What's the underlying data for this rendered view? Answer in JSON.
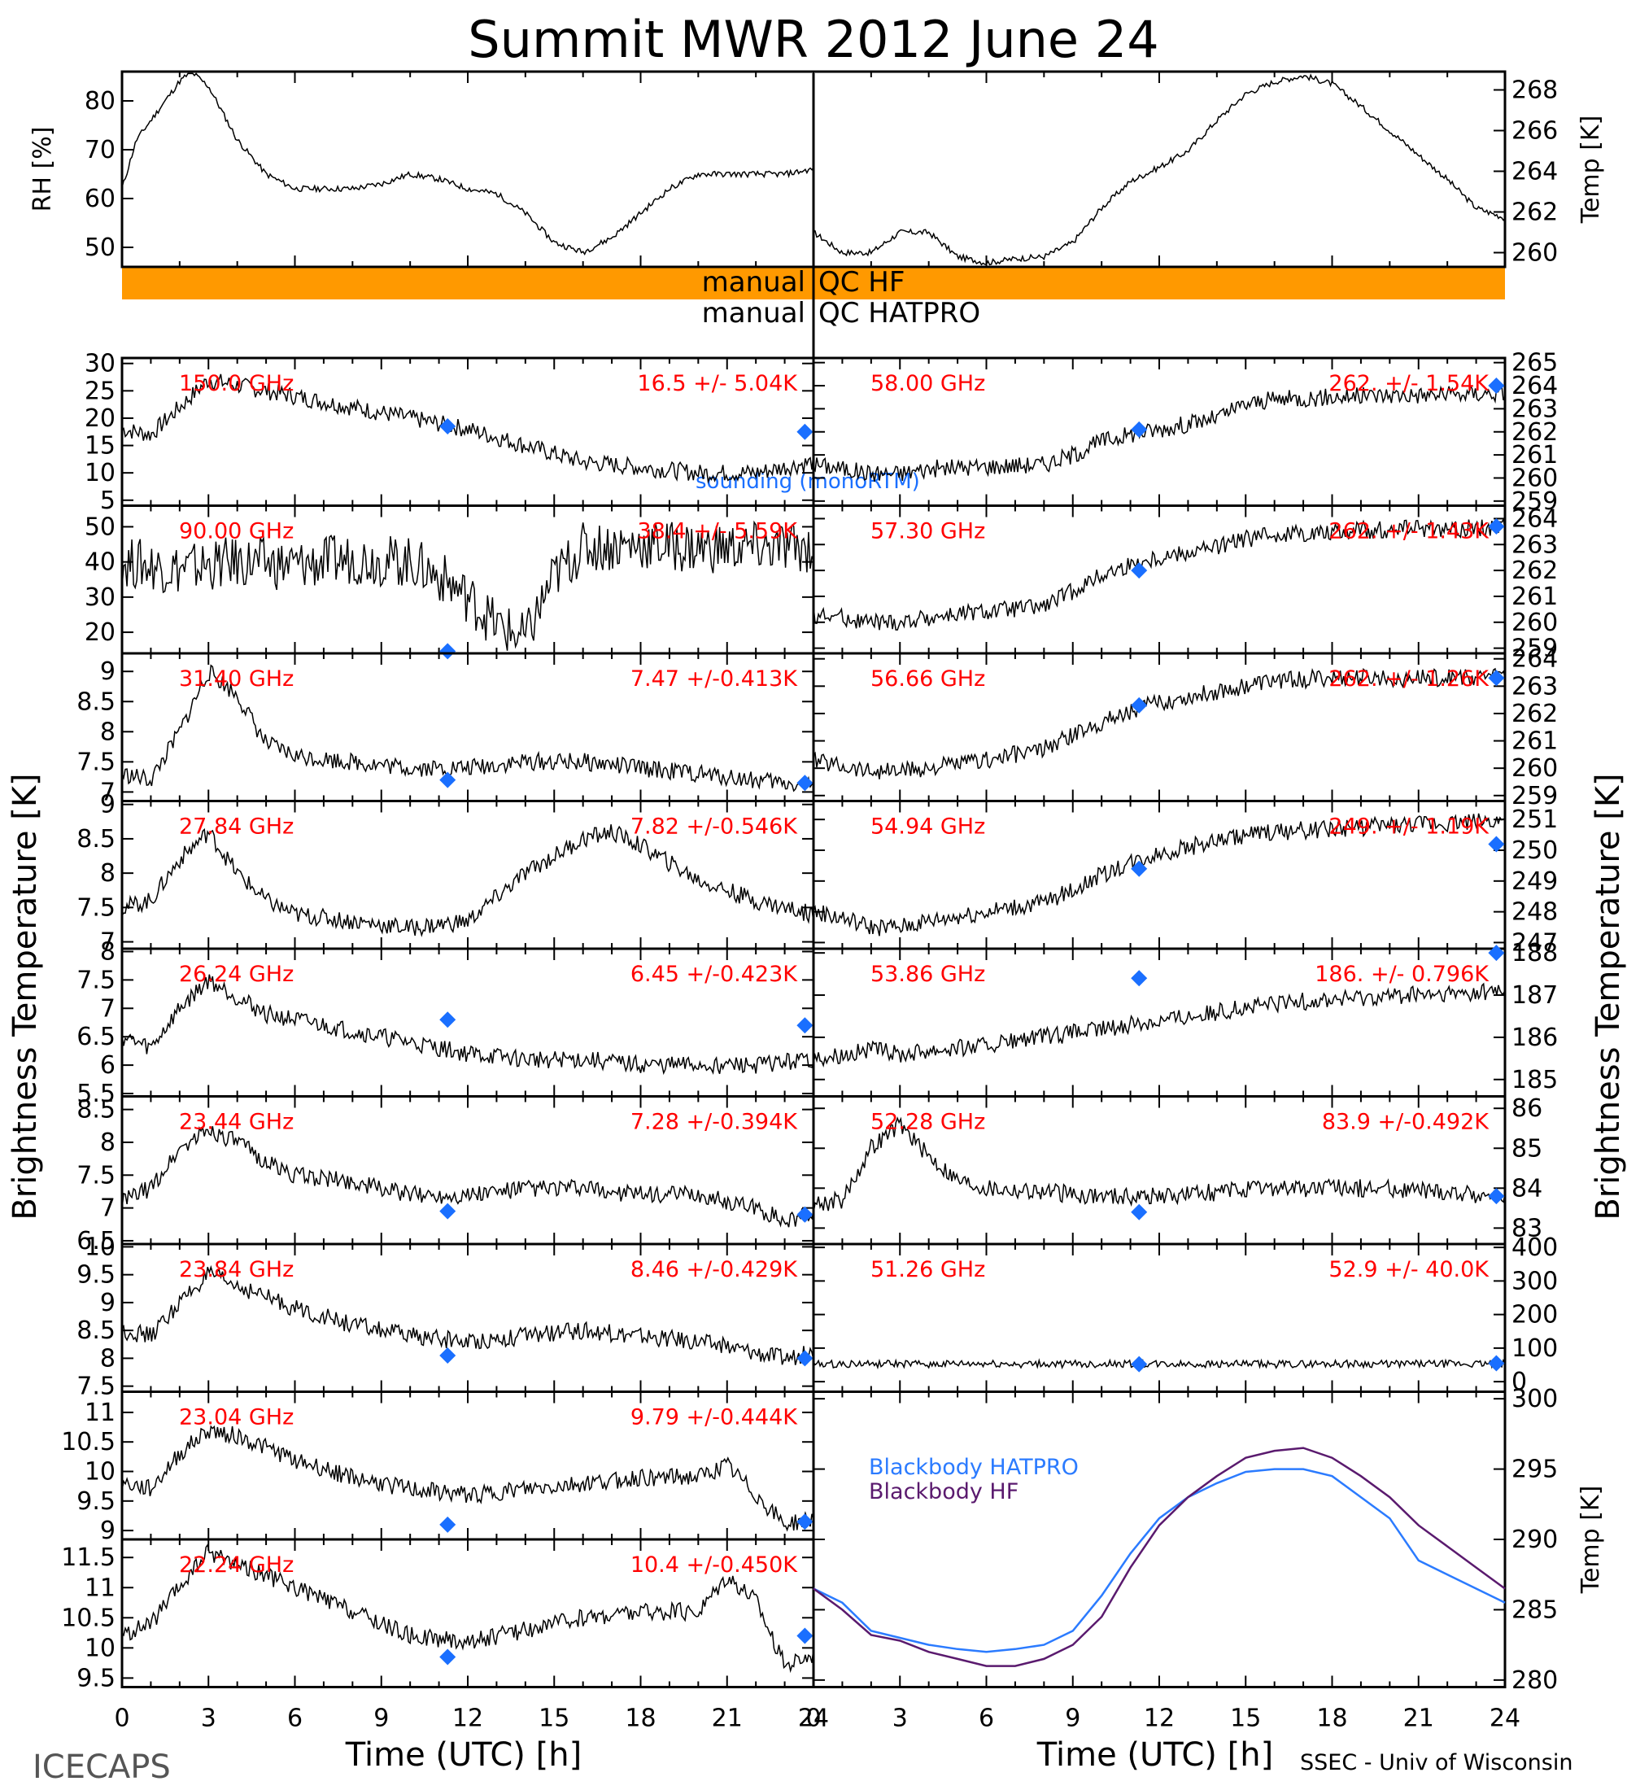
{
  "title": "Summit MWR 2012 June 24",
  "footer_left": "ICECAPS",
  "footer_right": "SSEC - Univ of Wisconsin",
  "colors": {
    "trace": "#000000",
    "sounding": "#1a6fff",
    "qc_bar": "#ff9900",
    "stats": "#ff0000",
    "bb_hatpro": "#2b7bff",
    "bb_hf": "#5a1a6e"
  },
  "chart_data": [
    {
      "type": "line",
      "id": "met",
      "left_ylabel": "RH [%]",
      "right_ylabel": "Temp [K]",
      "left_yticks": [
        50,
        60,
        70,
        80
      ],
      "left_ylim": [
        46,
        86
      ],
      "right_yticks": [
        260,
        262,
        264,
        266,
        268
      ],
      "right_ylim": [
        259.3,
        268.9
      ],
      "rh": {
        "x": [
          0,
          0.5,
          1,
          1.5,
          2,
          2.4,
          3,
          4,
          5,
          6,
          7,
          8,
          9,
          10,
          11,
          12,
          13,
          14,
          15,
          16,
          17,
          18,
          19,
          20,
          21,
          22,
          23,
          24
        ],
        "y": [
          62,
          72,
          76,
          80,
          84,
          86,
          83,
          72,
          65,
          62,
          62,
          62,
          63,
          65,
          64,
          62,
          61,
          57,
          51,
          49,
          52,
          57,
          62,
          65,
          65,
          65,
          65,
          66
        ]
      },
      "temp": {
        "x": [
          0,
          1,
          2,
          3,
          4,
          5,
          6,
          7,
          8,
          9,
          10,
          11,
          12,
          13,
          14,
          15,
          16,
          17,
          18,
          19,
          20,
          21,
          22,
          23,
          24
        ],
        "y": [
          261,
          260,
          260,
          261,
          261,
          259.8,
          259.5,
          259.7,
          259.8,
          260.5,
          262.2,
          263.5,
          264.2,
          265,
          266.5,
          267.8,
          268.4,
          268.7,
          268.3,
          267.2,
          266,
          264.8,
          263.6,
          262.2,
          261.7
        ]
      }
    },
    {
      "type": "line",
      "id": "p150",
      "freq": "150.0 GHz",
      "stats": "16.5 +/- 5.04K",
      "yticks": [
        5,
        10,
        15,
        20,
        25,
        30
      ],
      "ylim": [
        4,
        31
      ],
      "x": [
        0,
        1,
        2,
        3,
        4,
        6,
        8,
        10,
        12,
        14,
        16,
        18,
        20,
        22,
        24
      ],
      "y": [
        18,
        17,
        22,
        27,
        26,
        24,
        22,
        20,
        18,
        15,
        12,
        11,
        10,
        10,
        12
      ],
      "sounding": [
        [
          11.3,
          18.5
        ],
        [
          23.7,
          17.5
        ]
      ],
      "note": "sounding (monoRTM)"
    },
    {
      "type": "line",
      "id": "p90",
      "freq": "90.00 GHz",
      "stats": "38.4 +/- 5.59K",
      "yticks": [
        20,
        30,
        40,
        50
      ],
      "ylim": [
        14,
        56
      ],
      "x": [
        0,
        2,
        4,
        6,
        8,
        10,
        11,
        12,
        13,
        14,
        15,
        16,
        18,
        20,
        22,
        24
      ],
      "y": [
        40,
        38,
        40,
        39,
        41,
        40,
        36,
        30,
        22,
        18,
        36,
        44,
        45,
        44,
        44,
        44
      ],
      "sounding": [
        [
          11.3,
          14.6
        ]
      ]
    },
    {
      "type": "line",
      "id": "p3140",
      "freq": "31.40 GHz",
      "stats": "7.47 +/-0.413K",
      "yticks": [
        7.0,
        7.5,
        8.0,
        8.5,
        9.0
      ],
      "ylim": [
        6.85,
        9.3
      ],
      "x": [
        0,
        1,
        2,
        3,
        4,
        5,
        6,
        8,
        10,
        12,
        14,
        16,
        18,
        20,
        22,
        24
      ],
      "y": [
        7.3,
        7.2,
        8.0,
        9.0,
        8.6,
        7.8,
        7.6,
        7.5,
        7.4,
        7.4,
        7.5,
        7.5,
        7.4,
        7.3,
        7.2,
        7.1
      ],
      "sounding": [
        [
          11.3,
          7.2
        ],
        [
          23.7,
          7.15
        ]
      ]
    },
    {
      "type": "line",
      "id": "p2784",
      "freq": "27.84 GHz",
      "stats": "7.82 +/-0.546K",
      "yticks": [
        7.0,
        7.5,
        8.0,
        8.5,
        9.0
      ],
      "ylim": [
        6.9,
        9.05
      ],
      "x": [
        0,
        1,
        2,
        3,
        4,
        5,
        6,
        8,
        10,
        12,
        14,
        16,
        17,
        18,
        20,
        22,
        24
      ],
      "y": [
        7.5,
        7.6,
        8.2,
        8.6,
        8.0,
        7.6,
        7.4,
        7.3,
        7.2,
        7.3,
        8.0,
        8.5,
        8.6,
        8.4,
        7.9,
        7.6,
        7.4
      ],
      "sounding": []
    },
    {
      "type": "line",
      "id": "p2624",
      "freq": "26.24 GHz",
      "stats": "6.45 +/-0.423K",
      "yticks": [
        5.5,
        6.0,
        6.5,
        7.0,
        7.5,
        8.0
      ],
      "ylim": [
        5.45,
        8.05
      ],
      "x": [
        0,
        1,
        2,
        3,
        4,
        5,
        6,
        8,
        10,
        12,
        14,
        16,
        18,
        20,
        22,
        24
      ],
      "y": [
        6.5,
        6.3,
        7.0,
        7.5,
        7.2,
        6.9,
        6.8,
        6.6,
        6.4,
        6.2,
        6.1,
        6.1,
        6.0,
        6.0,
        6.0,
        6.1
      ],
      "sounding": [
        [
          11.3,
          6.8
        ],
        [
          23.7,
          6.7
        ]
      ]
    },
    {
      "type": "line",
      "id": "p2344",
      "freq": "23.44 GHz",
      "stats": "7.28 +/-0.394K",
      "yticks": [
        6.5,
        7.0,
        7.5,
        8.0,
        8.5
      ],
      "ylim": [
        6.45,
        8.7
      ],
      "x": [
        0,
        1,
        2,
        3,
        4,
        5,
        6,
        8,
        10,
        12,
        14,
        16,
        18,
        20,
        22,
        23,
        24
      ],
      "y": [
        7.1,
        7.3,
        7.9,
        8.2,
        8.0,
        7.7,
        7.5,
        7.4,
        7.2,
        7.2,
        7.3,
        7.3,
        7.2,
        7.2,
        7.0,
        6.8,
        6.9
      ],
      "sounding": [
        [
          11.3,
          6.95
        ],
        [
          23.7,
          6.9
        ]
      ]
    },
    {
      "type": "line",
      "id": "p2384",
      "freq": "23.84 GHz",
      "stats": "8.46 +/-0.429K",
      "yticks": [
        7.5,
        8.0,
        8.5,
        9.0,
        9.5,
        10.0
      ],
      "ylim": [
        7.4,
        10.05
      ],
      "x": [
        0,
        1,
        2,
        3,
        4,
        5,
        6,
        8,
        10,
        12,
        14,
        16,
        18,
        20,
        22,
        23,
        24
      ],
      "y": [
        8.5,
        8.4,
        9.0,
        9.5,
        9.3,
        9.1,
        8.9,
        8.6,
        8.4,
        8.3,
        8.4,
        8.5,
        8.4,
        8.3,
        8.1,
        8.0,
        8.1
      ],
      "sounding": [
        [
          11.3,
          8.05
        ],
        [
          23.7,
          8.0
        ]
      ]
    },
    {
      "type": "line",
      "id": "p2304",
      "freq": "23.04 GHz",
      "stats": "9.79 +/-0.444K",
      "yticks": [
        9.0,
        9.5,
        10.0,
        10.5,
        11.0
      ],
      "ylim": [
        8.85,
        11.35
      ],
      "x": [
        0,
        1,
        2,
        3,
        4,
        5,
        6,
        8,
        10,
        12,
        14,
        16,
        18,
        20,
        21,
        22,
        23,
        24
      ],
      "y": [
        9.8,
        9.7,
        10.3,
        10.7,
        10.6,
        10.4,
        10.2,
        9.9,
        9.7,
        9.6,
        9.7,
        9.8,
        9.9,
        9.9,
        10.1,
        9.6,
        9.1,
        9.2
      ],
      "sounding": [
        [
          11.3,
          9.1
        ],
        [
          23.7,
          9.15
        ]
      ]
    },
    {
      "type": "line",
      "id": "p2224",
      "freq": "22.24 GHz",
      "stats": "10.4 +/-0.450K",
      "yticks": [
        9.5,
        10.0,
        10.5,
        11.0,
        11.5
      ],
      "ylim": [
        9.35,
        11.8
      ],
      "x": [
        0,
        1,
        2,
        3,
        4,
        5,
        6,
        8,
        10,
        12,
        14,
        16,
        18,
        20,
        21,
        22,
        23,
        24
      ],
      "y": [
        10.2,
        10.4,
        11.0,
        11.6,
        11.4,
        11.2,
        11.0,
        10.6,
        10.2,
        10.1,
        10.3,
        10.5,
        10.6,
        10.6,
        11.2,
        10.8,
        9.7,
        9.9
      ],
      "sounding": [
        [
          11.3,
          9.85
        ],
        [
          23.7,
          10.2
        ]
      ]
    },
    {
      "type": "line",
      "id": "p5800",
      "freq": "58.00 GHz",
      "stats": "262. +/- 1.54K",
      "yticks": [
        259,
        260,
        261,
        262,
        263,
        264,
        265
      ],
      "ylim": [
        258.8,
        265.2
      ],
      "x": [
        0,
        1,
        2,
        3,
        4,
        6,
        8,
        9,
        10,
        11,
        12,
        14,
        15,
        16,
        18,
        20,
        22,
        24
      ],
      "y": [
        260.6,
        260.4,
        260.2,
        260.2,
        260.4,
        260.5,
        260.6,
        261.0,
        261.6,
        261.9,
        262.1,
        262.6,
        263.2,
        263.4,
        263.5,
        263.6,
        263.6,
        263.7
      ],
      "sounding": [
        [
          11.3,
          262.1
        ],
        [
          23.7,
          264.0
        ]
      ]
    },
    {
      "type": "line",
      "id": "p5730",
      "freq": "57.30 GHz",
      "stats": "262. +/- 1.43K",
      "yticks": [
        259,
        260,
        261,
        262,
        263,
        264
      ],
      "ylim": [
        258.8,
        264.5
      ],
      "x": [
        0,
        1,
        2,
        3,
        4,
        6,
        8,
        9,
        10,
        11,
        12,
        14,
        15,
        16,
        18,
        20,
        22,
        24
      ],
      "y": [
        260.3,
        260.2,
        260.0,
        260.0,
        260.2,
        260.4,
        260.6,
        261.2,
        261.8,
        262.2,
        262.5,
        262.9,
        263.2,
        263.4,
        263.5,
        263.6,
        263.6,
        263.7
      ],
      "sounding": [
        [
          11.3,
          262.0
        ],
        [
          23.7,
          263.7
        ]
      ]
    },
    {
      "type": "line",
      "id": "p5666",
      "freq": "56.66 GHz",
      "stats": "262. +/- 1.26K",
      "yticks": [
        259,
        260,
        261,
        262,
        263,
        264
      ],
      "ylim": [
        258.8,
        264.2
      ],
      "x": [
        0,
        1,
        2,
        3,
        4,
        6,
        8,
        9,
        10,
        11,
        12,
        14,
        15,
        16,
        18,
        20,
        22,
        24
      ],
      "y": [
        260.3,
        260.1,
        259.9,
        259.9,
        260.0,
        260.3,
        260.7,
        261.2,
        261.7,
        262.1,
        262.4,
        262.8,
        263.0,
        263.2,
        263.3,
        263.3,
        263.3,
        263.4
      ],
      "sounding": [
        [
          11.3,
          262.3
        ],
        [
          23.7,
          263.3
        ]
      ]
    },
    {
      "type": "line",
      "id": "p5494",
      "freq": "54.94 GHz",
      "stats": "249. +/- 1.19K",
      "yticks": [
        247,
        248,
        249,
        250,
        251
      ],
      "ylim": [
        246.8,
        251.6
      ],
      "x": [
        0,
        1,
        2,
        3,
        4,
        6,
        8,
        9,
        10,
        11,
        12,
        14,
        15,
        16,
        18,
        20,
        22,
        24
      ],
      "y": [
        248.0,
        247.8,
        247.5,
        247.5,
        247.7,
        248.0,
        248.3,
        248.7,
        249.2,
        249.6,
        249.9,
        250.3,
        250.5,
        250.6,
        250.7,
        250.8,
        250.9,
        251.0
      ],
      "sounding": [
        [
          11.3,
          249.4
        ],
        [
          23.7,
          250.2
        ]
      ]
    },
    {
      "type": "line",
      "id": "p5386",
      "freq": "53.86 GHz",
      "stats": "186. +/- 0.796K",
      "yticks": [
        185,
        186,
        187,
        188
      ],
      "ylim": [
        184.6,
        188.1
      ],
      "x": [
        0,
        1,
        2,
        3,
        4,
        6,
        8,
        10,
        12,
        14,
        16,
        18,
        20,
        22,
        24
      ],
      "y": [
        185.5,
        185.6,
        185.7,
        185.6,
        185.7,
        185.8,
        186.0,
        186.2,
        186.4,
        186.6,
        186.8,
        186.9,
        187.0,
        187.0,
        187.1
      ],
      "sounding": [
        [
          11.3,
          187.4
        ],
        [
          23.7,
          188.0
        ]
      ]
    },
    {
      "type": "line",
      "id": "p5228",
      "freq": "52.28 GHz",
      "stats": "83.9 +/-0.492K",
      "yticks": [
        83,
        84,
        85,
        86
      ],
      "ylim": [
        82.6,
        86.3
      ],
      "x": [
        0,
        1,
        2,
        3,
        4,
        5,
        6,
        8,
        10,
        12,
        14,
        16,
        18,
        20,
        22,
        24
      ],
      "y": [
        83.6,
        83.7,
        85.0,
        85.6,
        84.8,
        84.2,
        84.0,
        83.9,
        83.8,
        83.8,
        83.9,
        84.0,
        84.0,
        84.0,
        83.9,
        83.8
      ],
      "sounding": [
        [
          11.3,
          83.4
        ],
        [
          23.7,
          83.8
        ]
      ]
    },
    {
      "type": "line",
      "id": "p5126",
      "freq": "51.26 GHz",
      "stats": "52.9 +/- 40.0K",
      "yticks": [
        0,
        100,
        200,
        300,
        400
      ],
      "ylim": [
        -30,
        410
      ],
      "x": [
        0,
        2,
        4,
        6,
        8,
        10,
        12,
        14,
        16,
        18,
        20,
        22,
        24
      ],
      "y": [
        52,
        53,
        52,
        53,
        52,
        53,
        52,
        53,
        52,
        54,
        53,
        53,
        53
      ],
      "sounding": [
        [
          11.3,
          52
        ],
        [
          23.7,
          55
        ]
      ]
    },
    {
      "type": "line",
      "id": "bb",
      "ylabel": "Temp [K]",
      "yticks": [
        280,
        285,
        290,
        295,
        300
      ],
      "ylim": [
        279.5,
        300.5
      ],
      "series": [
        {
          "name": "Blackbody HATPRO",
          "x": [
            0,
            1,
            2,
            3,
            4,
            5,
            6,
            7,
            8,
            9,
            10,
            11,
            12,
            13,
            14,
            15,
            16,
            17,
            18,
            19,
            20,
            21,
            22,
            23,
            24
          ],
          "y": [
            286.5,
            285.5,
            283.5,
            283.0,
            282.5,
            282.2,
            282.0,
            282.2,
            282.5,
            283.5,
            286.0,
            289.0,
            291.5,
            293.0,
            294.0,
            294.8,
            295.0,
            295.0,
            294.5,
            293.0,
            291.5,
            288.5,
            287.5,
            286.5,
            285.5
          ]
        },
        {
          "name": "Blackbody HF",
          "x": [
            0,
            1,
            2,
            3,
            4,
            5,
            6,
            7,
            8,
            9,
            10,
            11,
            12,
            13,
            14,
            15,
            16,
            17,
            18,
            19,
            20,
            21,
            22,
            23,
            24
          ],
          "y": [
            286.5,
            285.0,
            283.2,
            282.8,
            282.0,
            281.5,
            281.0,
            281.0,
            281.5,
            282.5,
            284.5,
            288.0,
            291.0,
            293.0,
            294.5,
            295.8,
            296.3,
            296.5,
            295.8,
            294.5,
            293.0,
            291.0,
            289.5,
            288.0,
            286.5
          ]
        }
      ]
    }
  ],
  "xaxis": {
    "ticks": [
      0,
      3,
      6,
      9,
      12,
      15,
      18,
      21,
      24
    ],
    "label": "Time (UTC) [h]"
  },
  "ylabel_big": "Brightness Temperature [K]",
  "qc": {
    "hf": "manual",
    "hf_right": "QC HF",
    "hatpro": "manual",
    "hatpro_right": "QC HATPRO"
  }
}
